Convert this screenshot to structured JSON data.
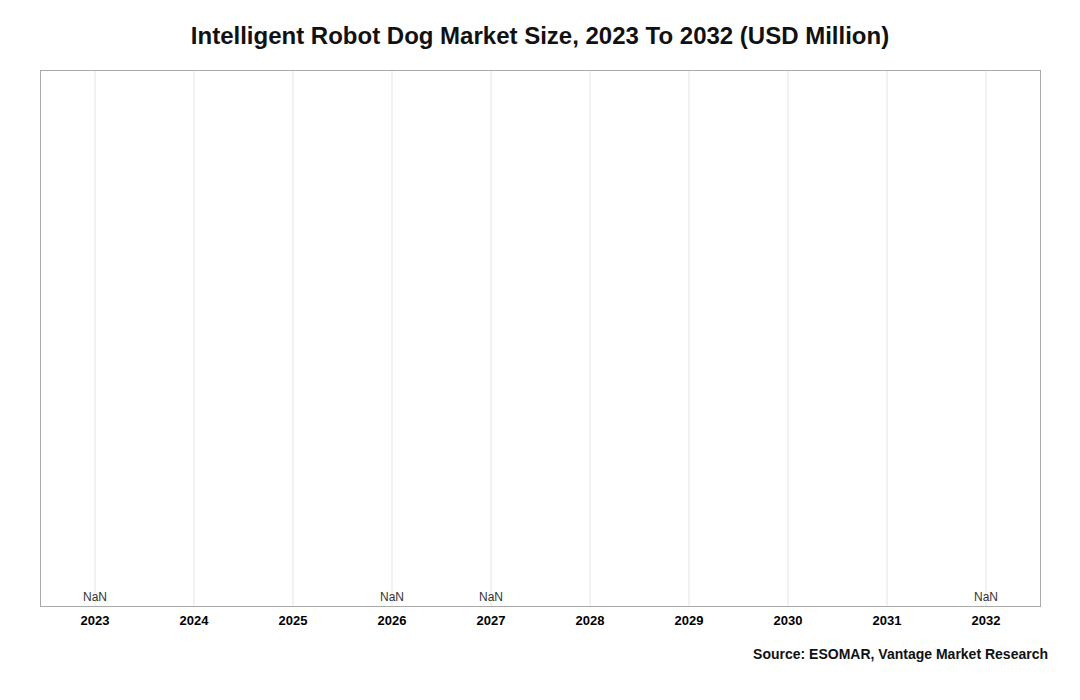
{
  "chart_data": {
    "type": "bar",
    "title": "Intelligent Robot Dog Market Size, 2023 To 2032 (USD Million)",
    "caption": "Source: ESOMAR, Vantage Market Research",
    "categories": [
      "2023",
      "2024",
      "2025",
      "2026",
      "2027",
      "2028",
      "2029",
      "2030",
      "2031",
      "2032"
    ],
    "values": [
      null,
      null,
      null,
      null,
      null,
      null,
      null,
      null,
      null,
      null
    ],
    "ylim": [
      0,
      1
    ],
    "grid": true,
    "tick_labels": "x",
    "annotations": [
      {
        "text": "NaN",
        "x": "2023"
      },
      {
        "text": "NaN",
        "x": "2026"
      },
      {
        "text": "NaN",
        "x": "2027"
      },
      {
        "text": "NaN",
        "x": "2032"
      }
    ]
  }
}
